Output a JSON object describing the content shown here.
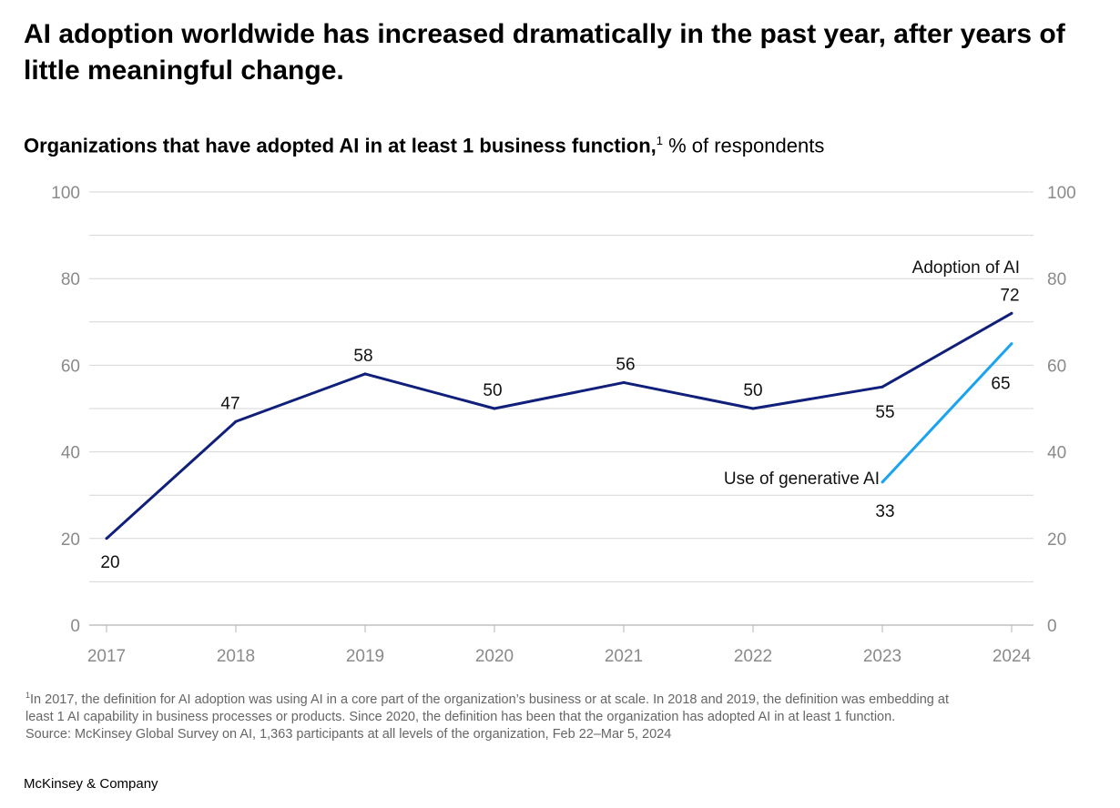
{
  "title": "AI adoption worldwide has increased dramatically in the past year, after years of little meaningful change.",
  "subtitle": {
    "bold": "Organizations that have adopted AI in at least 1 business function,",
    "footnote_mark": "1",
    "unit": " % of respondents"
  },
  "chart_data": {
    "type": "line",
    "x": [
      "2017",
      "2018",
      "2019",
      "2020",
      "2021",
      "2022",
      "2023",
      "2024"
    ],
    "ylim": [
      0,
      100
    ],
    "yticks": [
      0,
      20,
      40,
      60,
      80,
      100
    ],
    "grid": true,
    "series": [
      {
        "name": "Adoption of AI",
        "values": [
          20,
          47,
          58,
          50,
          56,
          50,
          55,
          72
        ],
        "color": "#0f1f7a"
      },
      {
        "name": "Use of generative AI",
        "values": [
          null,
          null,
          null,
          null,
          null,
          null,
          33,
          65
        ],
        "color": "#1aa3f0"
      }
    ]
  },
  "footnote": {
    "mark": "1",
    "lines": [
      "In 2017, the definition for AI adoption was using AI in a core part of the organization’s business or at scale. In 2018 and 2019, the definition was embedding at",
      "least 1 AI capability in business processes or products. Since 2020, the definition has been that the organization has adopted AI in at least 1 function.",
      "Source: McKinsey Global Survey on AI, 1,363 participants at all levels of the organization, Feb 22–Mar 5, 2024"
    ]
  },
  "brand": "McKinsey & Company"
}
